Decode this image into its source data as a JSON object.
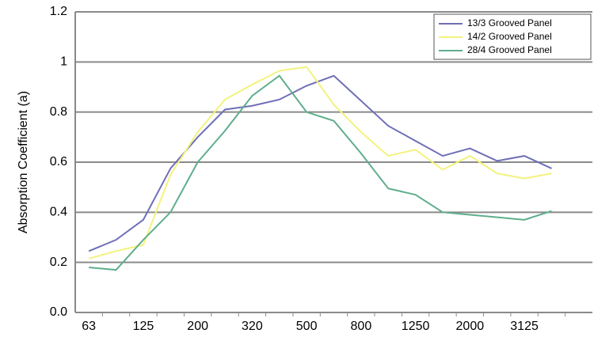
{
  "chart_data": {
    "type": "line",
    "y_label": "Absorption Coefficient (a)",
    "categories": [
      "63",
      null,
      "125",
      null,
      "200",
      null,
      "320",
      null,
      "500",
      null,
      "800",
      null,
      "1250",
      null,
      "2000",
      null,
      "3125",
      null
    ],
    "series": [
      {
        "name": "13/3 Grooved Panel",
        "color": "#6f6fb8",
        "values": [
          0.245,
          0.29,
          0.37,
          0.575,
          0.7,
          0.81,
          0.825,
          0.85,
          0.905,
          0.945,
          0.845,
          0.745,
          0.685,
          0.625,
          0.655,
          0.605,
          0.625,
          0.575
        ]
      },
      {
        "name": "14/2 Grooved Panel",
        "color": "#f3f27e",
        "values": [
          0.215,
          0.245,
          0.27,
          0.55,
          0.72,
          0.85,
          0.91,
          0.965,
          0.98,
          0.83,
          0.72,
          0.625,
          0.65,
          0.57,
          0.625,
          0.555,
          0.535,
          0.555
        ]
      },
      {
        "name": "28/4 Grooved Panel",
        "color": "#5fae8c",
        "values": [
          0.18,
          0.17,
          0.29,
          0.4,
          0.6,
          0.725,
          0.865,
          0.945,
          0.8,
          0.765,
          0.635,
          0.495,
          0.47,
          0.4,
          0.39,
          0.38,
          0.37,
          0.405
        ]
      }
    ],
    "ylim": [
      0,
      1.2
    ],
    "yticks": [
      {
        "value": 0,
        "label": "0.0"
      },
      0.2,
      0.4,
      0.6,
      0.8,
      1,
      1.2
    ],
    "grid": true,
    "legend": "top-right"
  }
}
